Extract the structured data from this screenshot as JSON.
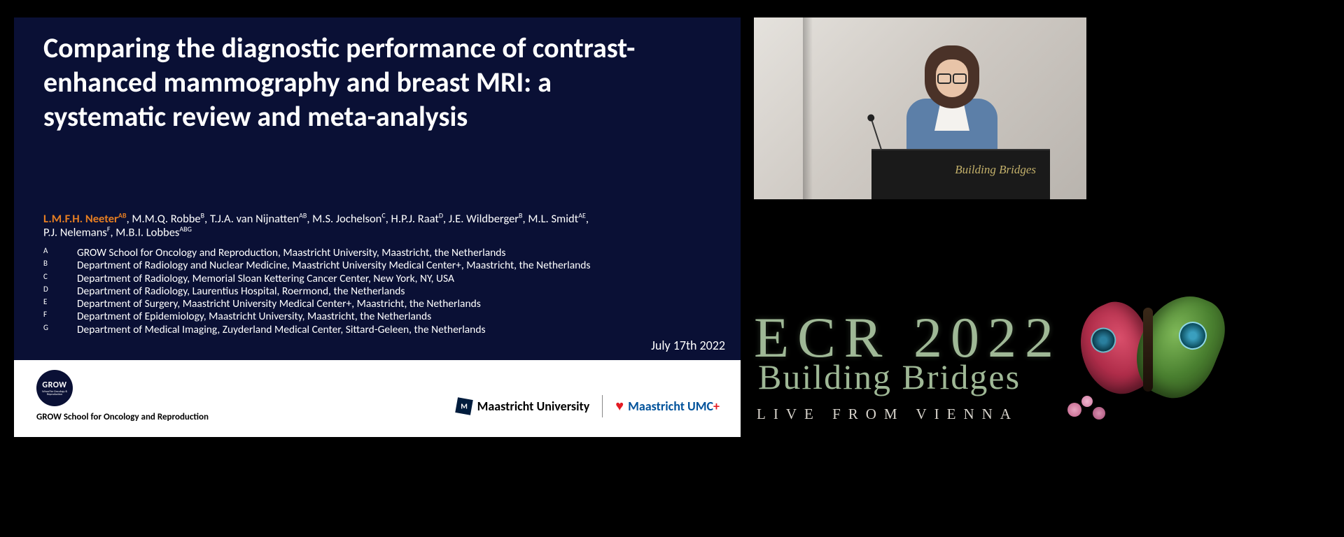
{
  "slide": {
    "title": "Comparing the diagnostic performance of contrast-enhanced mammography and breast MRI: a systematic review and meta-analysis",
    "date": "July 17th 2022",
    "lead_author": "L.M.F.H. Neeter",
    "lead_affil": "AB",
    "co_authors_html": ", M.M.Q. Robbe<sup>B</sup>, T.J.A. van Nijnatten<sup>AB</sup>, M.S. Jochelson<sup>C</sup>, H.P.J. Raat<sup>D</sup>, J.E. Wildberger<sup>B</sup>, M.L. Smidt<sup>AE</sup>,",
    "co_authors_line2_html": "P.J. Nelemans<sup>F</sup>, M.B.I. Lobbes<sup>ABG</sup>",
    "affiliations": [
      {
        "key": "A",
        "text": "GROW School for Oncology and Reproduction, Maastricht University, Maastricht, the Netherlands"
      },
      {
        "key": "B",
        "text": "Department of Radiology and Nuclear Medicine, Maastricht University Medical Center+, Maastricht, the Netherlands"
      },
      {
        "key": "C",
        "text": "Department of Radiology, Memorial Sloan Kettering Cancer Center, New York, NY, USA"
      },
      {
        "key": "D",
        "text": "Department of Radiology, Laurentius Hospital, Roermond, the Netherlands"
      },
      {
        "key": "E",
        "text": "Department of Surgery, Maastricht University Medical Center+, Maastricht, the Netherlands"
      },
      {
        "key": "F",
        "text": "Department of Epidemiology, Maastricht University, Maastricht, the Netherlands"
      },
      {
        "key": "G",
        "text": "Department of Medical Imaging, Zuyderland Medical Center, Sittard-Geleen, the Netherlands"
      }
    ]
  },
  "footer": {
    "grow_badge_main": "GROW",
    "grow_badge_sub": "School for Oncology & Reproduction",
    "grow_label": "GROW School for Oncology and Reproduction",
    "mu_label": "Maastricht University",
    "umc_label": "Maastricht UMC",
    "umc_plus": "+"
  },
  "speaker": {
    "podium_text": "Building Bridges"
  },
  "branding": {
    "main": "ECR 2022",
    "script": "Building Bridges",
    "sub": "LIVE FROM VIENNA"
  },
  "colors": {
    "slide_bg": "#0a1035",
    "lead_author": "#e67e22",
    "ecr_green": "#9fb896",
    "umc_blue": "#00529b",
    "umc_red": "#e31b23",
    "page_bg": "#000000"
  }
}
